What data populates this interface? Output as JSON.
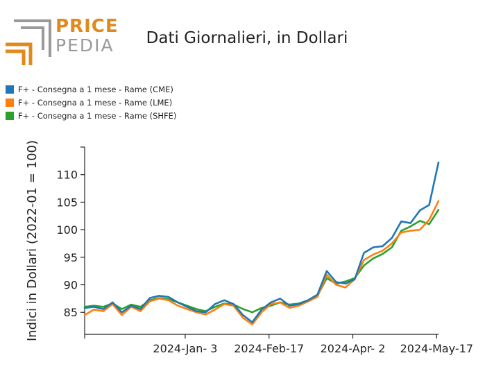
{
  "header": {
    "logo_top": "PRICE",
    "logo_bottom": "PEDIA",
    "title": "Dati Giornalieri, in Dollari"
  },
  "colors": {
    "brand_orange": "#e08a1e",
    "brand_gray": "#9a9a9a"
  },
  "chart_data": {
    "type": "line",
    "title": "Dati Giornalieri, in Dollari",
    "xlabel": "",
    "ylabel": "Indici in Dollari (2022-01 = 100)",
    "ylim": [
      81,
      115
    ],
    "xlim": [
      "2023-11-10",
      "2024-05-18"
    ],
    "x_ticks": [
      "2024-01-03",
      "2024-02-17",
      "2024-04-02",
      "2024-05-17"
    ],
    "x_tick_labels": [
      "2024-Jan- 3",
      "2024-Feb-17",
      "2024-Apr- 2",
      "2024-May-17"
    ],
    "y_ticks": [
      85,
      90,
      95,
      100,
      105,
      110
    ],
    "legend_position": "top-left",
    "x": [
      "2023-11-10",
      "2023-11-15",
      "2023-11-20",
      "2023-11-25",
      "2023-11-30",
      "2023-12-05",
      "2023-12-10",
      "2023-12-15",
      "2023-12-20",
      "2023-12-25",
      "2023-12-30",
      "2024-01-04",
      "2024-01-09",
      "2024-01-14",
      "2024-01-19",
      "2024-01-24",
      "2024-01-29",
      "2024-02-03",
      "2024-02-08",
      "2024-02-13",
      "2024-02-18",
      "2024-02-23",
      "2024-02-28",
      "2024-03-04",
      "2024-03-09",
      "2024-03-14",
      "2024-03-19",
      "2024-03-24",
      "2024-03-29",
      "2024-04-03",
      "2024-04-08",
      "2024-04-13",
      "2024-04-18",
      "2024-04-23",
      "2024-04-28",
      "2024-05-03",
      "2024-05-08",
      "2024-05-13",
      "2024-05-18"
    ],
    "series": [
      {
        "name": "F+ - Consegna a 1 mese - Rame (CME)",
        "color": "#1f77b4",
        "values": [
          85.8,
          86.0,
          85.6,
          86.8,
          85.0,
          86.2,
          85.6,
          87.6,
          88.0,
          87.8,
          86.8,
          86.0,
          85.2,
          85.0,
          86.5,
          87.2,
          86.5,
          84.5,
          83.2,
          85.5,
          86.8,
          87.5,
          86.2,
          86.5,
          87.2,
          88.2,
          92.5,
          90.5,
          90.2,
          91.0,
          95.8,
          96.8,
          97.0,
          98.5,
          101.5,
          101.2,
          103.5,
          104.5,
          112.2
        ]
      },
      {
        "name": "F+ - Consegna a 1 mese - Rame (LME)",
        "color": "#ff7f0e",
        "values": [
          84.5,
          85.5,
          85.2,
          86.5,
          84.5,
          86.0,
          85.2,
          87.0,
          87.5,
          87.2,
          86.2,
          85.6,
          85.0,
          84.6,
          85.5,
          86.5,
          86.2,
          84.0,
          82.8,
          85.0,
          86.5,
          86.8,
          85.8,
          86.2,
          87.0,
          87.8,
          91.8,
          90.0,
          89.5,
          91.0,
          94.5,
          95.5,
          96.2,
          97.5,
          99.5,
          99.8,
          100.0,
          101.8,
          105.2
        ]
      },
      {
        "name": "F+ - Consegna a 1 mese - Rame (SHFE)",
        "color": "#2ca02c",
        "values": [
          86.0,
          86.2,
          86.0,
          86.6,
          85.6,
          86.4,
          86.0,
          87.2,
          87.6,
          87.4,
          86.8,
          86.2,
          85.6,
          85.2,
          86.0,
          86.6,
          86.4,
          85.6,
          85.0,
          85.8,
          86.2,
          86.8,
          86.4,
          86.6,
          87.2,
          88.0,
          91.2,
          90.2,
          90.6,
          91.2,
          93.5,
          94.8,
          95.6,
          96.8,
          99.8,
          100.6,
          101.6,
          101.0,
          103.6
        ]
      }
    ]
  }
}
